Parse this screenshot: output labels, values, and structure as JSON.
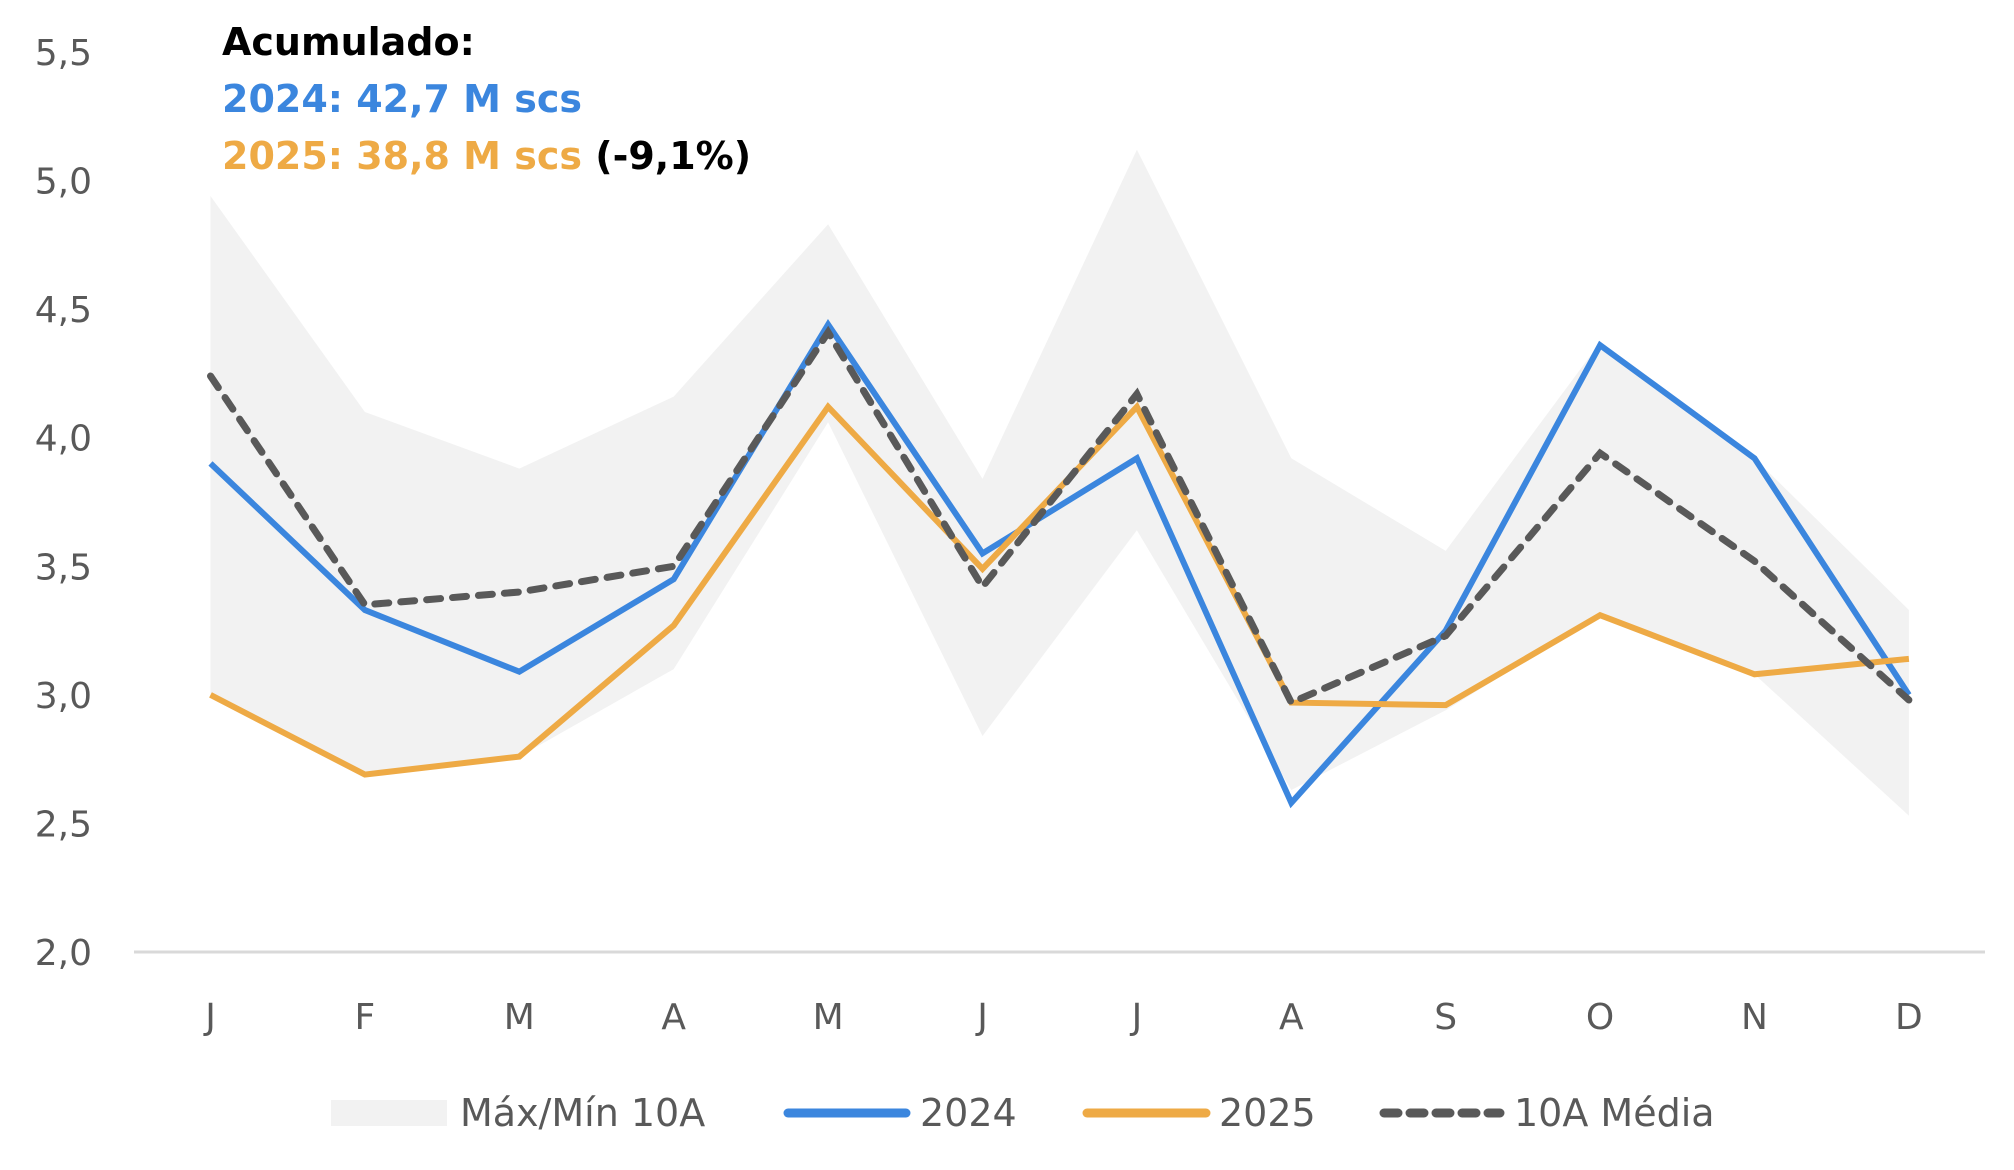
{
  "chart_data": {
    "type": "line",
    "title": "",
    "xlabel": "",
    "ylabel": "",
    "categories": [
      "J",
      "F",
      "M",
      "A",
      "M",
      "J",
      "J",
      "A",
      "S",
      "O",
      "N",
      "D"
    ],
    "ylim": [
      2.0,
      5.5
    ],
    "yticks": [
      2.0,
      2.5,
      3.0,
      3.5,
      4.0,
      4.5,
      5.0,
      5.5
    ],
    "ytick_labels": [
      "2,0",
      "2,5",
      "3,0",
      "3,5",
      "4,0",
      "4,5",
      "5,0",
      "5,5"
    ],
    "grid": false,
    "legend_position": "bottom",
    "band": {
      "name": "Máx/Mín 10A",
      "color": "#F2F2F2",
      "max": [
        4.94,
        4.1,
        3.88,
        4.16,
        4.83,
        3.84,
        5.12,
        3.92,
        3.56,
        4.37,
        3.92,
        3.33
      ],
      "min": [
        3.0,
        2.69,
        2.76,
        3.1,
        4.06,
        2.84,
        3.64,
        2.63,
        2.94,
        3.31,
        3.08,
        2.53
      ]
    },
    "series": [
      {
        "name": "2024",
        "color": "#3B86DE",
        "style": "solid",
        "values": [
          3.9,
          3.33,
          3.09,
          3.45,
          4.44,
          3.55,
          3.92,
          2.58,
          3.25,
          4.36,
          3.92,
          3.0
        ]
      },
      {
        "name": "2025",
        "color": "#EEAA45",
        "style": "solid",
        "values": [
          3.0,
          2.69,
          2.76,
          3.27,
          4.12,
          3.49,
          4.12,
          2.97,
          2.96,
          3.31,
          3.08,
          3.14
        ]
      },
      {
        "name": "10A Média",
        "color": "#595959",
        "style": "dashed",
        "values": [
          4.24,
          3.35,
          3.4,
          3.5,
          4.41,
          3.42,
          4.17,
          2.97,
          3.23,
          3.94,
          3.52,
          2.98
        ]
      }
    ],
    "annotations": {
      "title": "Acumulado:",
      "line_2024": "2024: 42,7 M scs",
      "line_2025": "2025: 38,8 M scs",
      "change": "(-9,1%)"
    }
  }
}
